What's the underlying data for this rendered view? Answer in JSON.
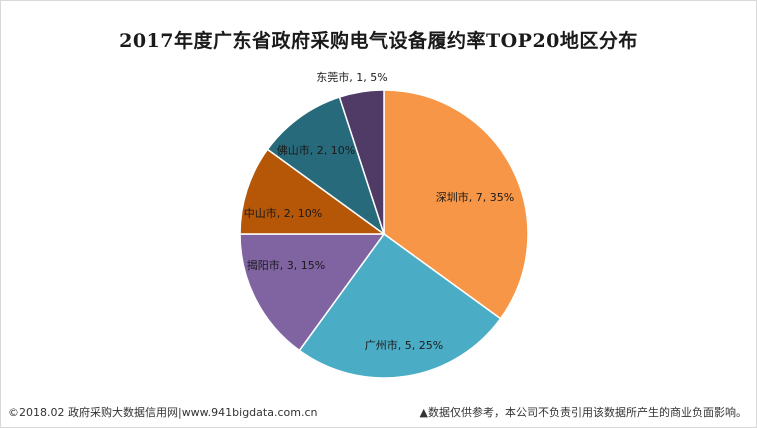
{
  "chart_data": {
    "type": "pie",
    "title": "2017年度广东省政府采购电气设备履约率TOP20地区分布",
    "slices": [
      {
        "name": "深圳市",
        "value": 7,
        "percent": "35%",
        "label": "深圳市, 7, 35%",
        "color": "#f79646"
      },
      {
        "name": "广州市",
        "value": 5,
        "percent": "25%",
        "label": "广州市, 5, 25%",
        "color": "#4bacc6"
      },
      {
        "name": "揭阳市",
        "value": 3,
        "percent": "15%",
        "label": "揭阳市, 3, 15%",
        "color": "#8064a2"
      },
      {
        "name": "中山市",
        "value": 2,
        "percent": "10%",
        "label": "中山市, 2, 10%",
        "color": "#b65708"
      },
      {
        "name": "佛山市",
        "value": 2,
        "percent": "10%",
        "label": "佛山市, 2, 10%",
        "color": "#276a7c"
      },
      {
        "name": "东莞市",
        "value": 1,
        "percent": "5%",
        "label": "东莞市, 1, 5%",
        "color": "#4f3b66"
      }
    ]
  },
  "footer": {
    "left": "©2018.02 政府采购大数据信用网|www.941bigdata.com.cn",
    "right": "▲数据仅供参考，本公司不负责引用该数据所产生的商业负面影响。"
  }
}
